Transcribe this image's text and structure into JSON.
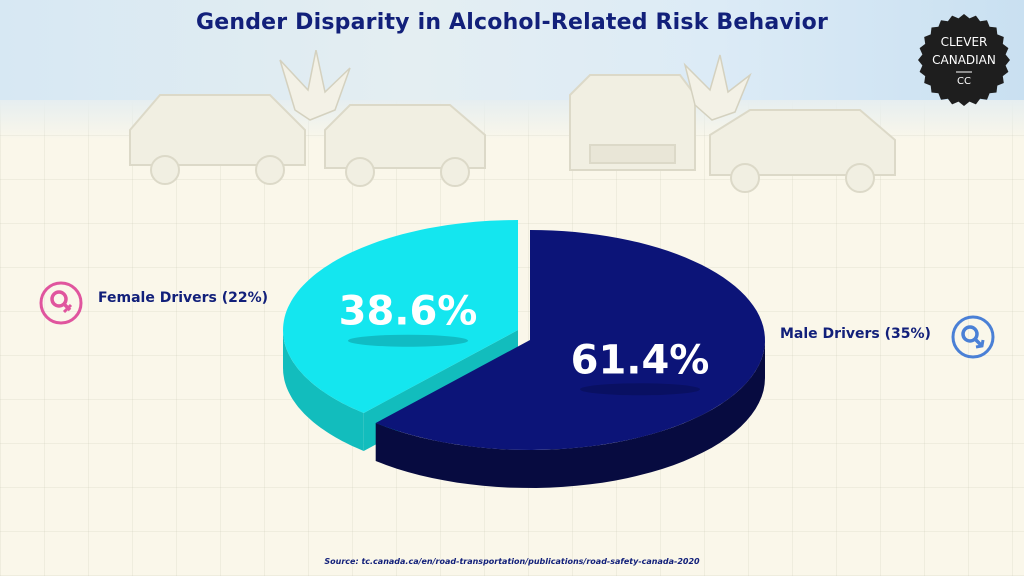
{
  "title": "Gender Disparity in Alcohol-Related Risk Behavior",
  "logo": {
    "line1": "CLEVER",
    "line2": "CANADIAN",
    "mark": "CC"
  },
  "chart_data": {
    "type": "pie",
    "title": "Gender Disparity in Alcohol-Related Risk Behavior",
    "slices": [
      {
        "label": "Female Drivers (22%)",
        "value": 38.6,
        "display": "38.6%",
        "color": "#14e6ef",
        "side_color": "#12bdbd"
      },
      {
        "label": "Male Drivers (35%)",
        "value": 61.4,
        "display": "61.4%",
        "color": "#0c1478",
        "side_color": "#070b40"
      }
    ],
    "legend_placement": "sides"
  },
  "legend": {
    "female": {
      "label": "Female Drivers (22%)",
      "icon": "female-symbol-icon",
      "color": "#e0559e"
    },
    "male": {
      "label": "Male Drivers (35%)",
      "icon": "male-symbol-icon",
      "color": "#4a80d6"
    }
  },
  "source": "Source: tc.canada.ca/en/road-transportation/publications/road-safety-canada-2020",
  "colors": {
    "title": "#12207a",
    "background": "#faf7ea",
    "badge": "#1e1e1e"
  }
}
